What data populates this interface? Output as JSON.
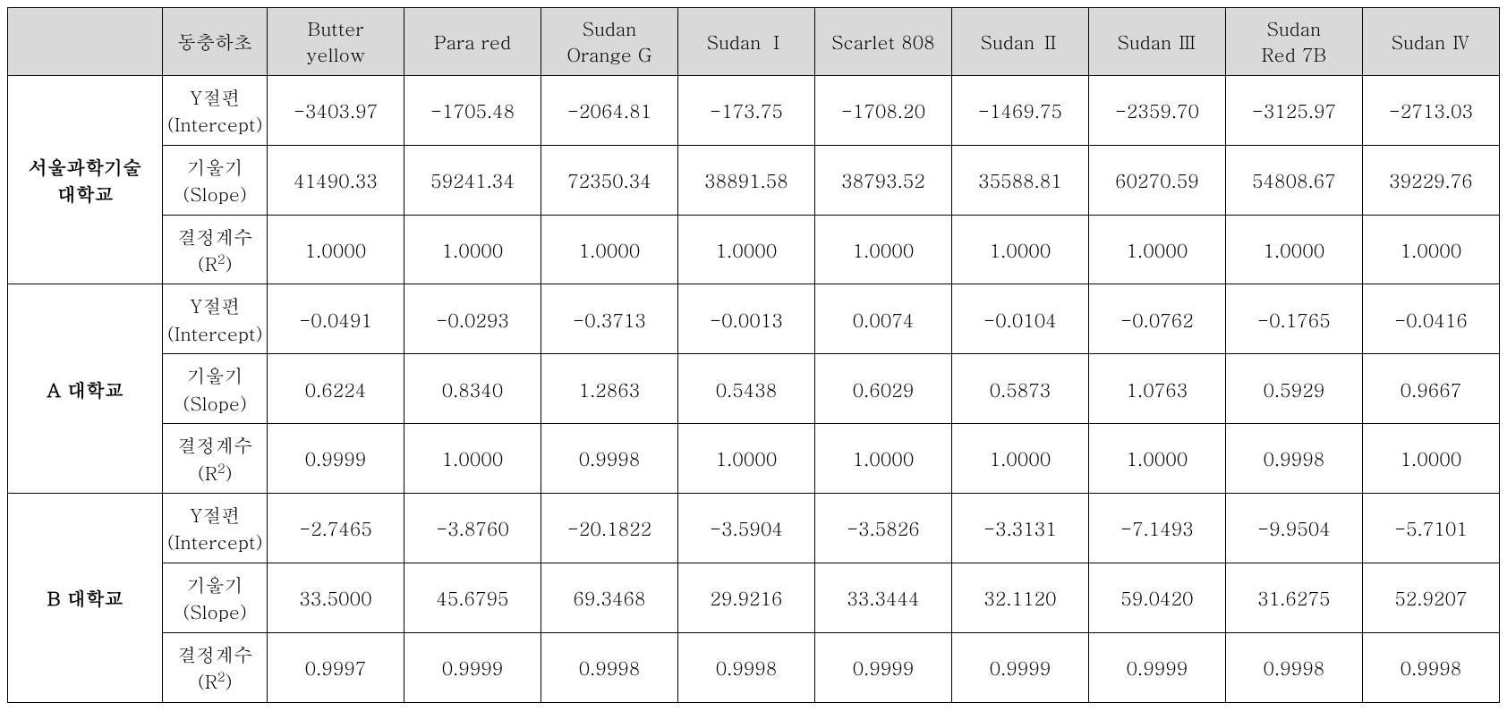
{
  "table": {
    "type": "table",
    "background_color": "#ffffff",
    "border_color": "#000000",
    "header_bg": "#d9d9d9",
    "text_color": "#000000",
    "font_size_pt": 16,
    "columns": [
      {
        "key": "group",
        "label_top": "",
        "label_bottom": ""
      },
      {
        "key": "metric",
        "label_top": "동충하초",
        "label_bottom": "",
        "single": true
      },
      {
        "key": "c0",
        "label_top": "Butter",
        "label_bottom": "yellow"
      },
      {
        "key": "c1",
        "label_top": "Para red",
        "label_bottom": "",
        "single": true
      },
      {
        "key": "c2",
        "label_top": "Sudan",
        "label_bottom": "Orange G"
      },
      {
        "key": "c3",
        "label_top": "Sudan Ⅰ",
        "label_bottom": "",
        "single": true
      },
      {
        "key": "c4",
        "label_top": "Scarlet 808",
        "label_bottom": "",
        "single": true
      },
      {
        "key": "c5",
        "label_top": "Sudan Ⅱ",
        "label_bottom": "",
        "single": true
      },
      {
        "key": "c6",
        "label_top": "Sudan Ⅲ",
        "label_bottom": "",
        "single": true
      },
      {
        "key": "c7",
        "label_top": "Sudan",
        "label_bottom": "Red 7B"
      },
      {
        "key": "c8",
        "label_top": "Sudan Ⅳ",
        "label_bottom": "",
        "single": true
      }
    ],
    "groups": [
      {
        "name_line1": "서울과학기술",
        "name_line2": "대학교",
        "rows": [
          {
            "metric_top": "Y절편",
            "metric_bottom": "(Intercept)",
            "values": [
              "-3403.97",
              "-1705.48",
              "-2064.81",
              "-173.75",
              "-1708.20",
              "-1469.75",
              "-2359.70",
              "-3125.97",
              "-2713.03"
            ]
          },
          {
            "metric_top": "기울기",
            "metric_bottom": "(Slope)",
            "values": [
              "41490.33",
              "59241.34",
              "72350.34",
              "38891.58",
              "38793.52",
              "35588.81",
              "60270.59",
              "54808.67",
              "39229.76"
            ]
          },
          {
            "metric_top": "결정계수",
            "metric_bottom_html": "(R<sup>2</sup>)",
            "values": [
              "1.0000",
              "1.0000",
              "1.0000",
              "1.0000",
              "1.0000",
              "1.0000",
              "1.0000",
              "1.0000",
              "1.0000"
            ]
          }
        ]
      },
      {
        "name_line1": "A 대학교",
        "name_line2": "",
        "rows": [
          {
            "metric_top": "Y절편",
            "metric_bottom": "(Intercept)",
            "values": [
              "-0.0491",
              "-0.0293",
              "-0.3713",
              "-0.0013",
              "0.0074",
              "-0.0104",
              "-0.0762",
              "-0.1765",
              "-0.0416"
            ]
          },
          {
            "metric_top": "기울기",
            "metric_bottom": "(Slope)",
            "values": [
              "0.6224",
              "0.8340",
              "1.2863",
              "0.5438",
              "0.6029",
              "0.5873",
              "1.0763",
              "0.5929",
              "0.9667"
            ]
          },
          {
            "metric_top": "결정계수",
            "metric_bottom_html": "(R<sup>2</sup>)",
            "values": [
              "0.9999",
              "1.0000",
              "0.9998",
              "1.0000",
              "1.0000",
              "1.0000",
              "1.0000",
              "0.9998",
              "1.0000"
            ]
          }
        ]
      },
      {
        "name_line1": "B 대학교",
        "name_line2": "",
        "rows": [
          {
            "metric_top": "Y절편",
            "metric_bottom": "(Intercept)",
            "values": [
              "-2.7465",
              "-3.8760",
              "-20.1822",
              "-3.5904",
              "-3.5826",
              "-3.3131",
              "-7.1493",
              "-9.9504",
              "-5.7101"
            ]
          },
          {
            "metric_top": "기울기",
            "metric_bottom": "(Slope)",
            "values": [
              "33.5000",
              "45.6795",
              "69.3468",
              "29.9216",
              "33.3444",
              "32.1120",
              "59.0420",
              "31.6275",
              "52.9207"
            ]
          },
          {
            "metric_top": "결정계수",
            "metric_bottom_html": "(R<sup>2</sup>)",
            "values": [
              "0.9997",
              "0.9999",
              "0.9998",
              "0.9998",
              "0.9999",
              "0.9999",
              "0.9999",
              "0.9998",
              "0.9998"
            ]
          }
        ]
      }
    ]
  }
}
